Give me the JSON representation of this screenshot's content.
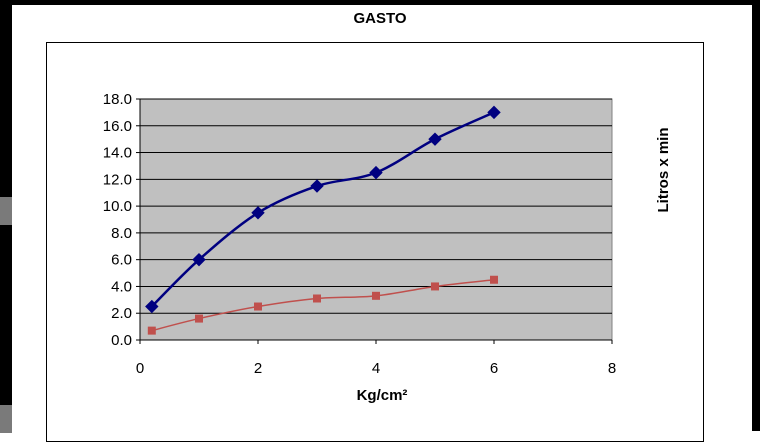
{
  "chart_data": {
    "type": "scatter",
    "title": "GASTO",
    "xlabel": "Kg/cm²",
    "ylabel": "Litros x min",
    "xlim": [
      0,
      8
    ],
    "ylim": [
      0,
      18
    ],
    "x_ticks": [
      "0",
      "2",
      "4",
      "6",
      "8"
    ],
    "y_ticks": [
      "0.0",
      "2.0",
      "4.0",
      "6.0",
      "8.0",
      "10.0",
      "12.0",
      "14.0",
      "16.0",
      "18.0"
    ],
    "grid": "horizontal",
    "plot_background": "#c0c0c0",
    "series": [
      {
        "color": "#000080",
        "marker": "diamond",
        "x": [
          0.2,
          1,
          2,
          3,
          4,
          5,
          6
        ],
        "y": [
          2.5,
          6.0,
          9.5,
          11.5,
          12.5,
          15.0,
          17.0
        ]
      },
      {
        "color": "#c0504d",
        "marker": "square",
        "x": [
          0.2,
          1,
          2,
          3,
          4,
          5,
          6
        ],
        "y": [
          0.7,
          1.6,
          2.5,
          3.1,
          3.3,
          4.0,
          4.5
        ]
      }
    ]
  }
}
